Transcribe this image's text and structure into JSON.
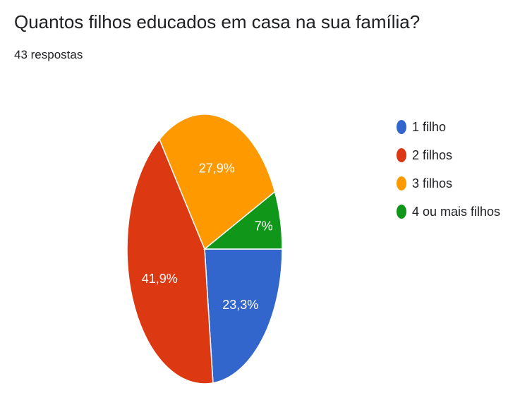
{
  "header": {
    "title": "Quantos filhos educados em casa na sua família?",
    "subtitle": "43 respostas"
  },
  "chart_data": {
    "type": "pie",
    "title": "Quantos filhos educados em casa na sua família?",
    "subtitle": "43 respostas",
    "legend_position": "right",
    "slices": [
      {
        "label": "1 filho",
        "value": 23.3,
        "display": "23,3%",
        "color": "#3366cc"
      },
      {
        "label": "2 filhos",
        "value": 41.9,
        "display": "41,9%",
        "color": "#dc3912"
      },
      {
        "label": "3 filhos",
        "value": 27.9,
        "display": "27,9%",
        "color": "#ff9900"
      },
      {
        "label": "4 ou mais filhos",
        "value": 7,
        "display": "7%",
        "color": "#109618"
      }
    ]
  }
}
